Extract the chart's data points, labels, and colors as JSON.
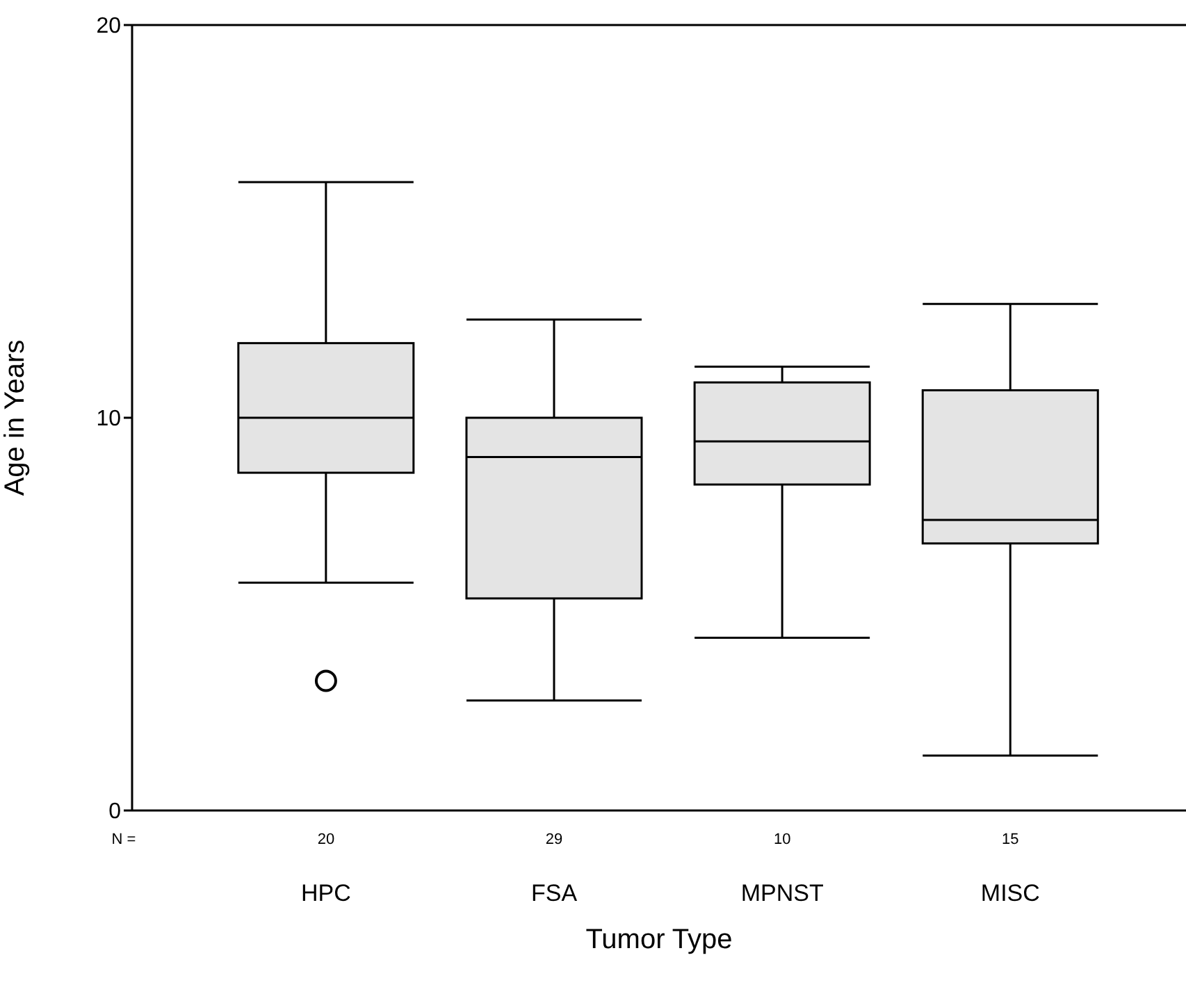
{
  "chart_data": {
    "type": "box",
    "xlabel": "Tumor Type",
    "ylabel": "Age in Years",
    "categories": [
      "HPC",
      "FSA",
      "MPNST",
      "MISC"
    ],
    "boxes": [
      {
        "low": 5.8,
        "q1": 8.6,
        "median": 10.0,
        "q3": 11.9,
        "high": 16.0,
        "outliers": [
          3.3
        ]
      },
      {
        "low": 2.8,
        "q1": 5.4,
        "median": 9.0,
        "q3": 10.0,
        "high": 12.5
      },
      {
        "low": 4.4,
        "q1": 8.3,
        "median": 9.4,
        "q3": 10.9,
        "high": 11.3
      },
      {
        "low": 1.4,
        "q1": 6.8,
        "median": 7.4,
        "q3": 10.7,
        "high": 12.9
      }
    ],
    "color": "#e4e4e4",
    "ylim": [
      0,
      20
    ],
    "yticks": [
      0,
      10,
      20
    ],
    "annotations": [
      "N =",
      "20",
      "29",
      "10",
      "15"
    ]
  }
}
